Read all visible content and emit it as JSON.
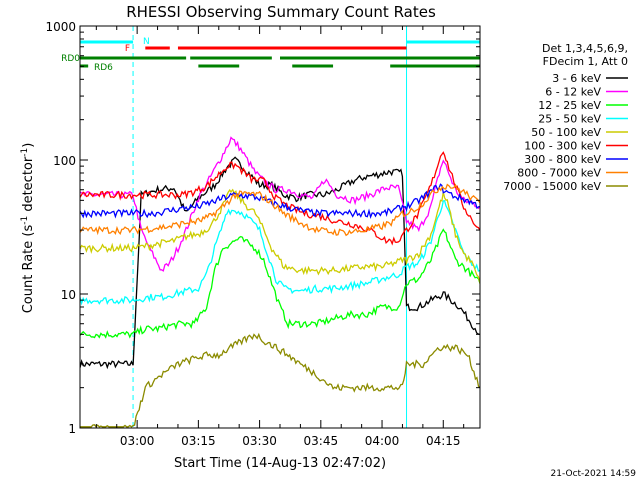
{
  "chart_data": {
    "type": "line",
    "title": "RHESSI Observing Summary Count Rates",
    "xlabel": "Start Time (14-Aug-13 02:47:02)",
    "ylabel_main": "Count Rate (s",
    "ylabel_sup1": "-1",
    "ylabel_mid": " detector",
    "ylabel_sup2": "-1",
    "ylabel_end": ")",
    "y_scale": "log",
    "ylim": [
      1,
      1000
    ],
    "xlim_minutes": [
      -14,
      84
    ],
    "x_ticks": [
      {
        "label": "03:00",
        "minute": 0
      },
      {
        "label": "03:15",
        "minute": 15
      },
      {
        "label": "03:30",
        "minute": 30
      },
      {
        "label": "03:45",
        "minute": 45
      },
      {
        "label": "04:00",
        "minute": 60
      },
      {
        "label": "04:15",
        "minute": 75
      }
    ],
    "y_ticks": [
      {
        "label": "1",
        "value": 1
      },
      {
        "label": "10",
        "value": 10
      },
      {
        "label": "100",
        "value": 100
      },
      {
        "label": "1000",
        "value": 1000
      }
    ],
    "legend_header": [
      "Det 1,3,4,5,6,9,",
      "FDecim 1, Att 0"
    ],
    "legend_placement": "right",
    "series": [
      {
        "name": "3 - 6 keV",
        "color": "#000000",
        "points": [
          [
            -14,
            3
          ],
          [
            -1,
            3
          ],
          [
            1,
            55
          ],
          [
            5,
            60
          ],
          [
            9,
            62
          ],
          [
            12,
            40
          ],
          [
            15,
            52
          ],
          [
            19,
            65
          ],
          [
            22,
            88
          ],
          [
            24,
            100
          ],
          [
            27,
            82
          ],
          [
            30,
            65
          ],
          [
            33,
            65
          ],
          [
            36,
            55
          ],
          [
            39,
            52
          ],
          [
            42,
            55
          ],
          [
            46,
            55
          ],
          [
            49,
            60
          ],
          [
            53,
            70
          ],
          [
            56,
            75
          ],
          [
            59,
            78
          ],
          [
            62,
            82
          ],
          [
            65,
            80
          ],
          [
            66,
            8
          ],
          [
            69,
            8
          ],
          [
            72,
            9
          ],
          [
            75,
            10
          ],
          [
            79,
            8
          ],
          [
            82,
            6
          ],
          [
            84,
            5
          ]
        ]
      },
      {
        "name": "6 - 12 keV",
        "color": "#ff00ff",
        "points": [
          [
            -14,
            55
          ],
          [
            -1,
            55
          ],
          [
            1,
            30
          ],
          [
            3,
            22
          ],
          [
            6,
            15
          ],
          [
            8,
            17
          ],
          [
            10,
            22
          ],
          [
            12,
            30
          ],
          [
            15,
            52
          ],
          [
            18,
            75
          ],
          [
            21,
            110
          ],
          [
            23,
            145
          ],
          [
            25,
            125
          ],
          [
            27,
            100
          ],
          [
            29,
            80
          ],
          [
            31,
            70
          ],
          [
            34,
            60
          ],
          [
            37,
            60
          ],
          [
            40,
            55
          ],
          [
            43,
            52
          ],
          [
            46,
            72
          ],
          [
            49,
            55
          ],
          [
            53,
            50
          ],
          [
            57,
            55
          ],
          [
            61,
            62
          ],
          [
            64,
            62
          ],
          [
            66,
            35
          ],
          [
            69,
            30
          ],
          [
            72,
            45
          ],
          [
            74,
            80
          ],
          [
            75,
            100
          ],
          [
            76,
            85
          ],
          [
            78,
            60
          ],
          [
            80,
            50
          ],
          [
            82,
            48
          ],
          [
            84,
            45
          ]
        ]
      },
      {
        "name": "12 - 25 keV",
        "color": "#00ff00",
        "points": [
          [
            -14,
            5
          ],
          [
            -1,
            5
          ],
          [
            2,
            5.5
          ],
          [
            5,
            5.5
          ],
          [
            8,
            5.8
          ],
          [
            11,
            6
          ],
          [
            14,
            6
          ],
          [
            17,
            8
          ],
          [
            19,
            15
          ],
          [
            21,
            22
          ],
          [
            23,
            24
          ],
          [
            25,
            26
          ],
          [
            27,
            24
          ],
          [
            29,
            22
          ],
          [
            31,
            18
          ],
          [
            33,
            12
          ],
          [
            35,
            8
          ],
          [
            37,
            6
          ],
          [
            40,
            6
          ],
          [
            44,
            6
          ],
          [
            48,
            6.5
          ],
          [
            52,
            7
          ],
          [
            56,
            7
          ],
          [
            60,
            8
          ],
          [
            64,
            8
          ],
          [
            66,
            12
          ],
          [
            69,
            13
          ],
          [
            72,
            18
          ],
          [
            74,
            25
          ],
          [
            75,
            30
          ],
          [
            76,
            26
          ],
          [
            78,
            18
          ],
          [
            80,
            16
          ],
          [
            82,
            14
          ],
          [
            84,
            12
          ]
        ]
      },
      {
        "name": "25 - 50 keV",
        "color": "#00ffff",
        "points": [
          [
            -14,
            9
          ],
          [
            -1,
            9
          ],
          [
            3,
            9.5
          ],
          [
            6,
            9.5
          ],
          [
            9,
            10
          ],
          [
            12,
            10.5
          ],
          [
            15,
            11
          ],
          [
            17,
            14
          ],
          [
            19,
            22
          ],
          [
            21,
            33
          ],
          [
            22,
            42
          ],
          [
            24,
            42
          ],
          [
            26,
            40
          ],
          [
            28,
            35
          ],
          [
            30,
            30
          ],
          [
            32,
            20
          ],
          [
            34,
            13
          ],
          [
            36,
            11
          ],
          [
            40,
            10.5
          ],
          [
            44,
            11
          ],
          [
            48,
            11
          ],
          [
            52,
            11.5
          ],
          [
            56,
            12
          ],
          [
            60,
            13
          ],
          [
            64,
            14
          ],
          [
            66,
            16
          ],
          [
            69,
            17
          ],
          [
            72,
            25
          ],
          [
            74,
            40
          ],
          [
            75,
            50
          ],
          [
            76,
            42
          ],
          [
            78,
            30
          ],
          [
            80,
            20
          ],
          [
            82,
            17
          ],
          [
            84,
            15
          ]
        ]
      },
      {
        "name": "50 - 100 keV",
        "color": "#cccc00",
        "points": [
          [
            -14,
            22
          ],
          [
            -1,
            22
          ],
          [
            3,
            23
          ],
          [
            6,
            24
          ],
          [
            9,
            25
          ],
          [
            12,
            27
          ],
          [
            15,
            28
          ],
          [
            18,
            32
          ],
          [
            20,
            40
          ],
          [
            22,
            52
          ],
          [
            23,
            60
          ],
          [
            25,
            52
          ],
          [
            27,
            45
          ],
          [
            29,
            40
          ],
          [
            31,
            30
          ],
          [
            33,
            22
          ],
          [
            36,
            16
          ],
          [
            40,
            15
          ],
          [
            44,
            15
          ],
          [
            48,
            15
          ],
          [
            52,
            15.5
          ],
          [
            56,
            16
          ],
          [
            60,
            16
          ],
          [
            63,
            17
          ],
          [
            65,
            18
          ],
          [
            66,
            18
          ],
          [
            69,
            20
          ],
          [
            72,
            28
          ],
          [
            74,
            45
          ],
          [
            75,
            55
          ],
          [
            76,
            48
          ],
          [
            78,
            28
          ],
          [
            80,
            20
          ],
          [
            82,
            17
          ],
          [
            84,
            12
          ]
        ]
      },
      {
        "name": "100 - 300 keV",
        "color": "#ff0000",
        "points": [
          [
            -14,
            55
          ],
          [
            -1,
            55
          ],
          [
            3,
            55
          ],
          [
            7,
            55
          ],
          [
            11,
            55
          ],
          [
            14,
            58
          ],
          [
            17,
            64
          ],
          [
            20,
            78
          ],
          [
            22,
            90
          ],
          [
            24,
            92
          ],
          [
            26,
            82
          ],
          [
            28,
            72
          ],
          [
            31,
            70
          ],
          [
            34,
            52
          ],
          [
            37,
            45
          ],
          [
            41,
            40
          ],
          [
            45,
            38
          ],
          [
            49,
            35
          ],
          [
            53,
            33
          ],
          [
            57,
            30
          ],
          [
            61,
            25
          ],
          [
            64,
            25
          ],
          [
            66,
            30
          ],
          [
            69,
            40
          ],
          [
            72,
            65
          ],
          [
            74,
            100
          ],
          [
            75,
            120
          ],
          [
            76,
            95
          ],
          [
            78,
            65
          ],
          [
            80,
            45
          ],
          [
            82,
            36
          ],
          [
            84,
            30
          ]
        ]
      },
      {
        "name": "300 - 800 keV",
        "color": "#0000ff",
        "points": [
          [
            -14,
            40
          ],
          [
            -1,
            40
          ],
          [
            4,
            40
          ],
          [
            8,
            42
          ],
          [
            12,
            44
          ],
          [
            15,
            45
          ],
          [
            18,
            48
          ],
          [
            21,
            52
          ],
          [
            24,
            55
          ],
          [
            27,
            54
          ],
          [
            30,
            52
          ],
          [
            33,
            48
          ],
          [
            36,
            45
          ],
          [
            40,
            42
          ],
          [
            44,
            40
          ],
          [
            48,
            40
          ],
          [
            52,
            40
          ],
          [
            56,
            40
          ],
          [
            60,
            40
          ],
          [
            63,
            42
          ],
          [
            65,
            45
          ],
          [
            66,
            45
          ],
          [
            69,
            50
          ],
          [
            72,
            58
          ],
          [
            74,
            65
          ],
          [
            75,
            60
          ],
          [
            77,
            55
          ],
          [
            79,
            52
          ],
          [
            81,
            50
          ],
          [
            84,
            45
          ]
        ]
      },
      {
        "name": "800 - 7000 keV",
        "color": "#ff8000",
        "points": [
          [
            -14,
            30
          ],
          [
            -1,
            30
          ],
          [
            4,
            31
          ],
          [
            8,
            32
          ],
          [
            12,
            34
          ],
          [
            15,
            35
          ],
          [
            18,
            38
          ],
          [
            21,
            45
          ],
          [
            24,
            55
          ],
          [
            27,
            56
          ],
          [
            30,
            55
          ],
          [
            33,
            48
          ],
          [
            36,
            40
          ],
          [
            40,
            34
          ],
          [
            44,
            30
          ],
          [
            48,
            29
          ],
          [
            52,
            29
          ],
          [
            56,
            30
          ],
          [
            60,
            32
          ],
          [
            63,
            35
          ],
          [
            65,
            40
          ],
          [
            66,
            40
          ],
          [
            69,
            45
          ],
          [
            72,
            55
          ],
          [
            74,
            62
          ],
          [
            76,
            65
          ],
          [
            78,
            62
          ],
          [
            80,
            58
          ],
          [
            82,
            52
          ],
          [
            84,
            48
          ]
        ]
      },
      {
        "name": "7000 - 15000 keV",
        "color": "#8b8b00",
        "points": [
          [
            -14,
            1
          ],
          [
            -1,
            1
          ],
          [
            2,
            2
          ],
          [
            6,
            2.5
          ],
          [
            10,
            3
          ],
          [
            14,
            3.3
          ],
          [
            17,
            3.5
          ],
          [
            20,
            3.5
          ],
          [
            23,
            4
          ],
          [
            26,
            4.5
          ],
          [
            29,
            5
          ],
          [
            31,
            4.5
          ],
          [
            34,
            4
          ],
          [
            37,
            3.5
          ],
          [
            40,
            3
          ],
          [
            44,
            2.5
          ],
          [
            48,
            2
          ],
          [
            52,
            2
          ],
          [
            56,
            2
          ],
          [
            60,
            2
          ],
          [
            63,
            2
          ],
          [
            65,
            2
          ],
          [
            66,
            3
          ],
          [
            70,
            3
          ],
          [
            74,
            4
          ],
          [
            78,
            4
          ],
          [
            81,
            3.5
          ],
          [
            84,
            2
          ]
        ]
      }
    ],
    "state_bars": {
      "N_label": "N",
      "F_label": "F",
      "RD0_label": "RD0",
      "RD6_label": "RD6",
      "N_segments": [
        [
          -14,
          -1
        ],
        [
          66,
          84
        ]
      ],
      "F_segments": [
        [
          2,
          8
        ],
        [
          10,
          66
        ]
      ],
      "RD0_segments": [
        [
          -14,
          12
        ],
        [
          13,
          33
        ],
        [
          35,
          84
        ]
      ],
      "RD6_segments": [
        [
          -14,
          -12
        ],
        [
          15,
          25
        ],
        [
          38,
          48
        ],
        [
          62,
          84
        ]
      ],
      "N_color": "#00ffff",
      "F_color": "#ff0000",
      "RD_color": "#008000"
    },
    "saa_lines_minutes": [
      -14,
      -1,
      66,
      84
    ],
    "saa_color": "#00ffff"
  },
  "footer_timestamp": "21-Oct-2021 14:59"
}
